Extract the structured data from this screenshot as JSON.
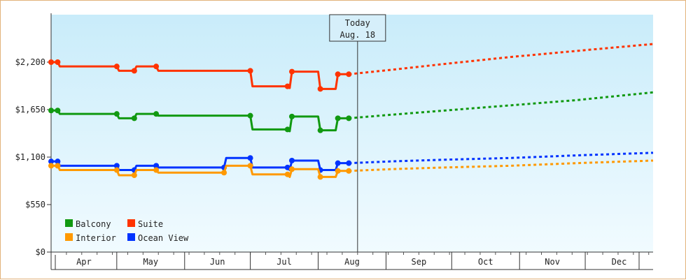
{
  "chart_data": {
    "type": "line",
    "x_axis": {
      "months": [
        "Apr",
        "May",
        "Jun",
        "Jul",
        "Aug",
        "Sep",
        "Oct",
        "Nov",
        "Dec"
      ],
      "month_lengths": [
        30,
        31,
        30,
        31,
        31,
        30,
        31,
        30,
        31
      ],
      "start": "Mar 31",
      "end": "Dec 31"
    },
    "ylim": [
      0,
      2750
    ],
    "yticks": [
      {
        "value": 0,
        "label": "$0"
      },
      {
        "value": 550,
        "label": "$550"
      },
      {
        "value": 1100,
        "label": "$1,100"
      },
      {
        "value": 1650,
        "label": "$1,650"
      },
      {
        "value": 2200,
        "label": "$2,200"
      }
    ],
    "today": {
      "line1": "Today",
      "line2": "Aug. 18",
      "day": 140
    },
    "series": [
      {
        "name": "Suite",
        "color": "#ff3300",
        "points": [
          [
            0,
            2200
          ],
          [
            3,
            2200
          ],
          [
            4,
            2150
          ],
          [
            30,
            2150
          ],
          [
            31,
            2100
          ],
          [
            38,
            2100
          ],
          [
            39,
            2150
          ],
          [
            48,
            2150
          ],
          [
            49,
            2100
          ],
          [
            91,
            2100
          ],
          [
            92,
            1920
          ],
          [
            108,
            1920
          ],
          [
            109,
            1900
          ],
          [
            110,
            2090
          ],
          [
            122,
            2090
          ],
          [
            123,
            1890
          ],
          [
            130,
            1890
          ],
          [
            131,
            2060
          ],
          [
            136,
            2060
          ]
        ],
        "forecast": [
          [
            136,
            2060
          ],
          [
            155,
            2110
          ],
          [
            180,
            2180
          ],
          [
            210,
            2260
          ],
          [
            240,
            2330
          ],
          [
            275,
            2410
          ]
        ]
      },
      {
        "name": "Balcony",
        "color": "#119911",
        "points": [
          [
            0,
            1640
          ],
          [
            3,
            1640
          ],
          [
            4,
            1600
          ],
          [
            30,
            1600
          ],
          [
            31,
            1550
          ],
          [
            38,
            1550
          ],
          [
            39,
            1600
          ],
          [
            48,
            1600
          ],
          [
            49,
            1580
          ],
          [
            91,
            1580
          ],
          [
            92,
            1420
          ],
          [
            108,
            1420
          ],
          [
            109,
            1400
          ],
          [
            110,
            1570
          ],
          [
            122,
            1570
          ],
          [
            123,
            1410
          ],
          [
            130,
            1410
          ],
          [
            131,
            1550
          ],
          [
            136,
            1550
          ]
        ],
        "forecast": [
          [
            136,
            1550
          ],
          [
            155,
            1590
          ],
          [
            180,
            1640
          ],
          [
            210,
            1700
          ],
          [
            240,
            1760
          ],
          [
            275,
            1850
          ]
        ]
      },
      {
        "name": "Ocean View",
        "color": "#0033ff",
        "points": [
          [
            0,
            1050
          ],
          [
            3,
            1050
          ],
          [
            4,
            1000
          ],
          [
            30,
            1000
          ],
          [
            31,
            950
          ],
          [
            38,
            950
          ],
          [
            39,
            1000
          ],
          [
            48,
            1000
          ],
          [
            49,
            980
          ],
          [
            79,
            980
          ],
          [
            80,
            1090
          ],
          [
            91,
            1090
          ],
          [
            92,
            980
          ],
          [
            108,
            980
          ],
          [
            109,
            950
          ],
          [
            110,
            1060
          ],
          [
            122,
            1060
          ],
          [
            123,
            950
          ],
          [
            130,
            950
          ],
          [
            131,
            1030
          ],
          [
            136,
            1030
          ]
        ],
        "forecast": [
          [
            136,
            1030
          ],
          [
            155,
            1050
          ],
          [
            180,
            1070
          ],
          [
            210,
            1090
          ],
          [
            240,
            1120
          ],
          [
            275,
            1150
          ]
        ]
      },
      {
        "name": "Interior",
        "color": "#ff9900",
        "points": [
          [
            0,
            1000
          ],
          [
            3,
            1000
          ],
          [
            4,
            950
          ],
          [
            30,
            950
          ],
          [
            31,
            890
          ],
          [
            38,
            890
          ],
          [
            39,
            950
          ],
          [
            48,
            950
          ],
          [
            49,
            920
          ],
          [
            79,
            920
          ],
          [
            80,
            1000
          ],
          [
            91,
            1000
          ],
          [
            92,
            900
          ],
          [
            108,
            900
          ],
          [
            109,
            870
          ],
          [
            110,
            960
          ],
          [
            122,
            960
          ],
          [
            123,
            870
          ],
          [
            130,
            870
          ],
          [
            131,
            940
          ],
          [
            136,
            940
          ]
        ],
        "forecast": [
          [
            136,
            940
          ],
          [
            155,
            960
          ],
          [
            180,
            980
          ],
          [
            210,
            1000
          ],
          [
            240,
            1030
          ],
          [
            275,
            1060
          ]
        ]
      }
    ],
    "legend": [
      {
        "label": "Balcony",
        "color": "#119911"
      },
      {
        "label": "Suite",
        "color": "#ff3300"
      },
      {
        "label": "Interior",
        "color": "#ff9900"
      },
      {
        "label": "Ocean View",
        "color": "#0033ff"
      }
    ]
  }
}
